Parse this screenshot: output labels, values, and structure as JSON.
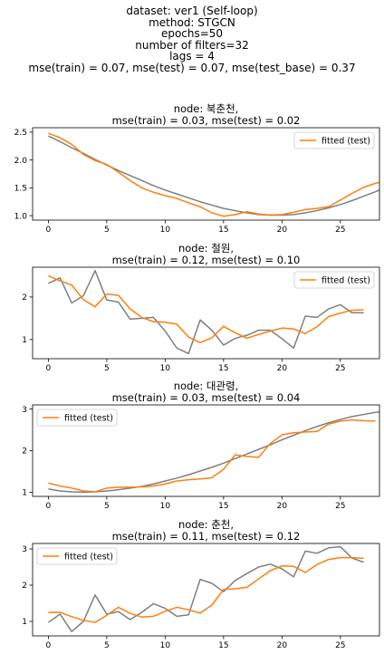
{
  "suptitle": {
    "lines": [
      "dataset: ver1 (Self-loop)",
      "method: STGCN",
      "epochs=50",
      "number of filters=32",
      "lags = 4",
      "mse(train) = 0.07, mse(test) = 0.07, mse(test_base) = 0.37"
    ]
  },
  "colors": {
    "observed": "#7f7f7f",
    "fitted": "#ff7f0e"
  },
  "chart_data": [
    {
      "type": "line",
      "title": [
        "node: 북춘천,",
        "mse(train) = 0.03, mse(test) = 0.02"
      ],
      "xticks": [
        0,
        5,
        10,
        15,
        20,
        25
      ],
      "xlim": [
        -1.35,
        28.35
      ],
      "ylim": [
        0.92,
        2.58
      ],
      "yticks": [
        1.0,
        1.5,
        2.0,
        2.5
      ],
      "ytick_labels": [
        "1.0",
        "1.5",
        "2.0",
        "2.5"
      ],
      "legend": {
        "loc": "top-right",
        "label": "fitted (test)"
      },
      "series": [
        {
          "role": "observed",
          "values": [
            2.43,
            2.33,
            2.22,
            2.12,
            2.01,
            1.91,
            1.81,
            1.72,
            1.63,
            1.54,
            1.46,
            1.39,
            1.32,
            1.25,
            1.19,
            1.13,
            1.09,
            1.05,
            1.02,
            1.01,
            1.01,
            1.02,
            1.05,
            1.09,
            1.14,
            1.2,
            1.27,
            1.35,
            1.43,
            1.52,
            1.62,
            1.72,
            1.82,
            1.93,
            2.04
          ]
        },
        {
          "role": "fitted",
          "name": "fitted (test)",
          "values": [
            2.48,
            2.4,
            2.28,
            2.1,
            1.99,
            1.92,
            1.78,
            1.63,
            1.5,
            1.42,
            1.36,
            1.31,
            1.23,
            1.16,
            1.05,
            0.99,
            1.02,
            1.07,
            1.03,
            1.01,
            1.02,
            1.06,
            1.11,
            1.13,
            1.16,
            1.28,
            1.4,
            1.51,
            1.58,
            1.63,
            1.65
          ]
        }
      ]
    },
    {
      "type": "line",
      "title": [
        "node: 철원,",
        "mse(train) = 0.12, mse(test) = 0.10"
      ],
      "xticks": [
        0,
        5,
        10,
        15,
        20,
        25
      ],
      "xlim": [
        -1.35,
        28.35
      ],
      "ylim": [
        0.55,
        2.7
      ],
      "yticks": [
        1,
        2
      ],
      "ytick_labels": [
        "1",
        "2"
      ],
      "legend": {
        "loc": "top-right",
        "label": "fitted (test)"
      },
      "series": [
        {
          "role": "observed",
          "values": [
            2.32,
            2.45,
            1.86,
            2.03,
            2.62,
            1.93,
            1.88,
            1.48,
            1.5,
            1.52,
            1.2,
            0.8,
            0.67,
            1.46,
            1.22,
            0.87,
            1.03,
            1.1,
            1.22,
            1.22,
            1.02,
            0.8,
            1.55,
            1.52,
            1.72,
            1.82,
            1.63,
            1.63
          ]
        },
        {
          "role": "fitted",
          "name": "fitted (test)",
          "values": [
            2.5,
            2.38,
            2.28,
            1.94,
            1.77,
            2.07,
            2.04,
            1.72,
            1.52,
            1.42,
            1.41,
            1.36,
            1.06,
            0.93,
            1.04,
            1.31,
            1.16,
            1.03,
            1.12,
            1.2,
            1.27,
            1.25,
            1.14,
            1.3,
            1.54,
            1.62,
            1.69,
            1.7
          ]
        }
      ]
    },
    {
      "type": "line",
      "title": [
        "node: 대관령,",
        "mse(train) = 0.03, mse(test) = 0.04"
      ],
      "xticks": [
        0,
        5,
        10,
        15,
        20,
        25
      ],
      "xlim": [
        -1.35,
        28.35
      ],
      "ylim": [
        0.9,
        3.1
      ],
      "yticks": [
        1,
        2,
        3
      ],
      "ytick_labels": [
        "1",
        "2",
        "3"
      ],
      "legend": {
        "loc": "top-left",
        "label": "fitted (test)"
      },
      "series": [
        {
          "role": "observed",
          "values": [
            1.08,
            1.03,
            1.01,
            1.0,
            1.01,
            1.03,
            1.06,
            1.1,
            1.14,
            1.2,
            1.27,
            1.34,
            1.42,
            1.51,
            1.6,
            1.7,
            1.81,
            1.92,
            2.03,
            2.14,
            2.26,
            2.37,
            2.48,
            2.58,
            2.67,
            2.75,
            2.82,
            2.87,
            2.92,
            2.95,
            2.97,
            2.98,
            2.99,
            2.99,
            3.0
          ]
        },
        {
          "role": "fitted",
          "name": "fitted (test)",
          "values": [
            1.22,
            1.15,
            1.1,
            1.03,
            1.01,
            1.1,
            1.12,
            1.12,
            1.13,
            1.15,
            1.2,
            1.27,
            1.3,
            1.32,
            1.35,
            1.55,
            1.9,
            1.86,
            1.84,
            2.17,
            2.38,
            2.43,
            2.45,
            2.46,
            2.64,
            2.71,
            2.74,
            2.72,
            2.71
          ]
        }
      ]
    },
    {
      "type": "line",
      "title": [
        "node: 춘천,",
        "mse(train) = 0.11, mse(test) = 0.12"
      ],
      "xticks": [
        0,
        5,
        10,
        15,
        20,
        25
      ],
      "xlim": [
        -1.35,
        28.35
      ],
      "ylim": [
        0.6,
        3.15
      ],
      "yticks": [
        1,
        2,
        3
      ],
      "ytick_labels": [
        "1",
        "2",
        "3"
      ],
      "legend": {
        "loc": "top-left",
        "label": "fitted (test)"
      },
      "series": [
        {
          "role": "observed",
          "values": [
            0.97,
            1.2,
            0.72,
            1.0,
            1.73,
            1.2,
            1.27,
            1.05,
            1.25,
            1.49,
            1.36,
            1.14,
            1.18,
            2.16,
            2.05,
            1.82,
            2.13,
            2.32,
            2.5,
            2.58,
            2.45,
            2.23,
            2.94,
            2.88,
            3.03,
            3.06,
            2.75,
            2.63
          ]
        },
        {
          "role": "fitted",
          "name": "fitted (test)",
          "values": [
            1.25,
            1.25,
            1.13,
            1.03,
            0.97,
            1.17,
            1.39,
            1.22,
            1.12,
            1.14,
            1.28,
            1.39,
            1.32,
            1.23,
            1.45,
            1.88,
            1.9,
            1.94,
            2.17,
            2.4,
            2.53,
            2.52,
            2.35,
            2.57,
            2.71,
            2.76,
            2.76,
            2.74
          ]
        }
      ]
    }
  ]
}
